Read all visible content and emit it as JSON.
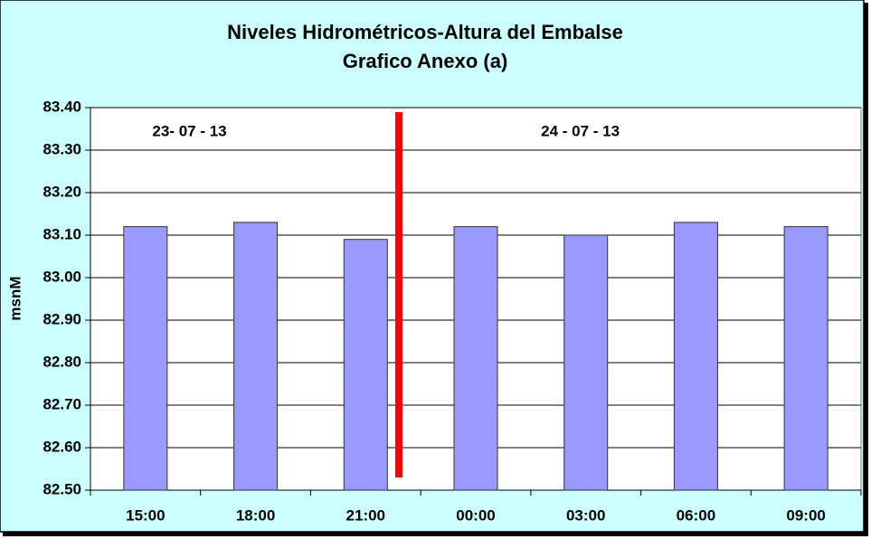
{
  "chart_data": {
    "type": "bar",
    "title": "Niveles Hidrométricos-Altura del Embalse",
    "subtitle": "Grafico Anexo (a)",
    "y_label": "msnM",
    "categories": [
      "15:00",
      "18:00",
      "21:00",
      "00:00",
      "03:00",
      "06:00",
      "09:00"
    ],
    "values": [
      83.12,
      83.13,
      83.09,
      83.12,
      83.1,
      83.13,
      83.12
    ],
    "color": "#9999ff",
    "ylim": [
      82.5,
      83.4
    ],
    "yticks": [
      {
        "value": 82.5,
        "label": "82.50"
      },
      {
        "value": 82.6,
        "label": "82.60"
      },
      {
        "value": 82.7,
        "label": "82.70"
      },
      {
        "value": 82.8,
        "label": "82.80"
      },
      {
        "value": 82.9,
        "label": "82.90"
      },
      {
        "value": 83.0,
        "label": "83.00"
      },
      {
        "value": 83.1,
        "label": "83.10"
      },
      {
        "value": 83.2,
        "label": "83.20"
      },
      {
        "value": 83.3,
        "label": "83.30"
      },
      {
        "value": 83.4,
        "label": "83.40"
      }
    ],
    "grid": true,
    "annotations": [
      "23- 07 - 13",
      "24 - 07 - 13"
    ]
  }
}
